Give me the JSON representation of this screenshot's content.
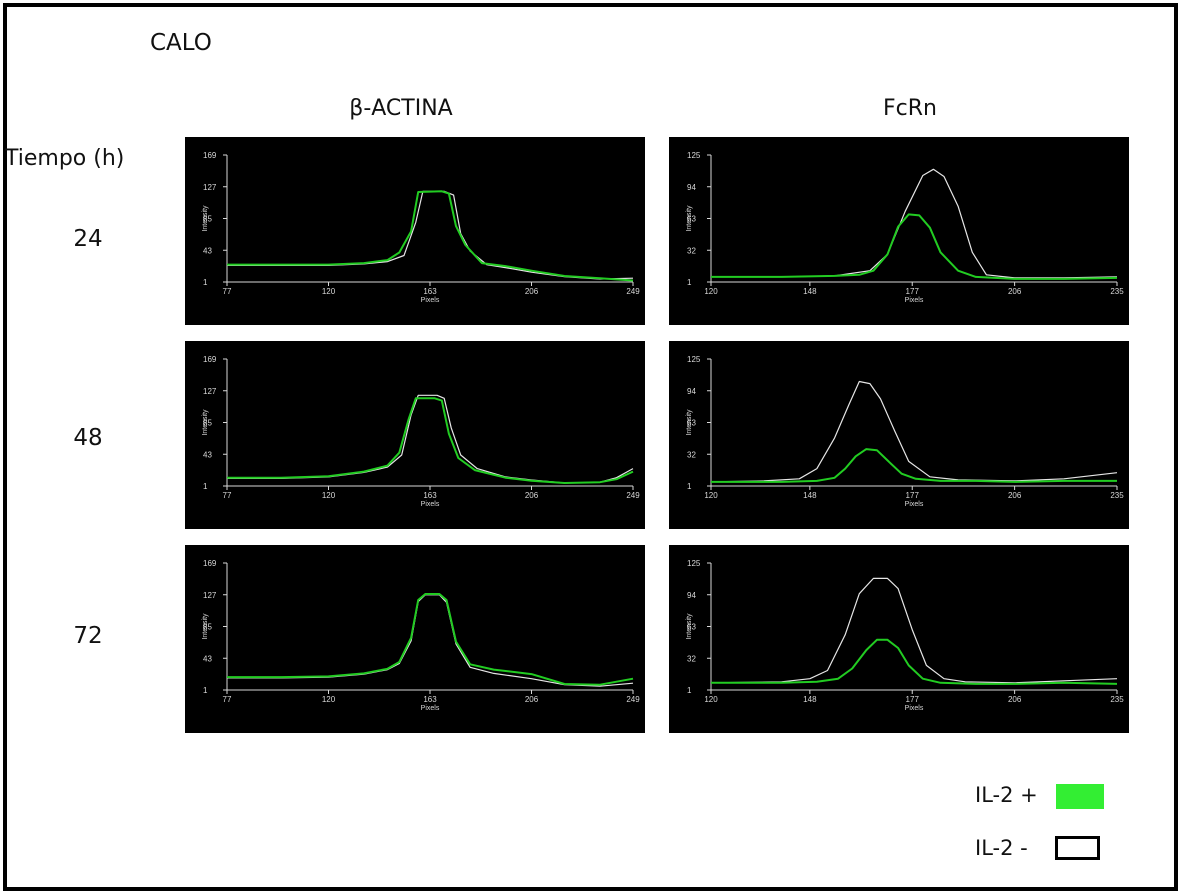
{
  "figure": {
    "cell_line": "CALO",
    "column_titles": [
      "β-ACTINA",
      "FcRn"
    ],
    "row_header": "Tiempo (h)",
    "row_labels": [
      "24",
      "48",
      "72"
    ]
  },
  "legend": {
    "items": [
      {
        "label": "IL-2 +",
        "color": "#33ee33"
      },
      {
        "label": "IL-2 -",
        "color": "#ffffff"
      }
    ]
  },
  "colors": {
    "panel_bg": "#000000",
    "axis": "#d8d8d8",
    "il2_plus": "#22cc22",
    "il2_minus": "#e6e6e6"
  },
  "chart_data": [
    {
      "type": "line",
      "row": "24",
      "column": "β-ACTINA",
      "xlabel": "Pixels",
      "ylabel": "Intensity",
      "xlim": [
        77,
        249
      ],
      "ylim": [
        1,
        169
      ],
      "xticks": [
        "77",
        "120",
        "163",
        "206",
        "249"
      ],
      "yticks": [
        "169",
        "127",
        "85",
        "43",
        "1"
      ],
      "series": [
        {
          "name": "IL-2 +",
          "x": [
            77,
            100,
            120,
            135,
            145,
            150,
            155,
            158,
            168,
            171,
            174,
            178,
            185,
            195,
            206,
            220,
            235,
            249
          ],
          "y": [
            24,
            24,
            24,
            26,
            30,
            40,
            68,
            120,
            121,
            118,
            75,
            50,
            26,
            22,
            16,
            9,
            6,
            3
          ]
        },
        {
          "name": "IL-2 -",
          "x": [
            77,
            100,
            120,
            135,
            145,
            152,
            157,
            160,
            169,
            173,
            176,
            180,
            187,
            195,
            206,
            220,
            235,
            249
          ],
          "y": [
            23,
            23,
            23,
            25,
            28,
            36,
            80,
            121,
            121,
            116,
            65,
            42,
            24,
            20,
            14,
            8,
            5,
            6
          ]
        }
      ]
    },
    {
      "type": "line",
      "row": "24",
      "column": "FcRn",
      "xlabel": "Pixels",
      "ylabel": "Intensity",
      "xlim": [
        120,
        235
      ],
      "ylim": [
        1,
        125
      ],
      "xticks": [
        "120",
        "148",
        "177",
        "206",
        "235"
      ],
      "yticks": [
        "125",
        "94",
        "63",
        "32",
        "1"
      ],
      "series": [
        {
          "name": "IL-2 +",
          "x": [
            120,
            140,
            155,
            162,
            166,
            170,
            173,
            176,
            179,
            182,
            185,
            190,
            195,
            206,
            220,
            235
          ],
          "y": [
            6,
            6,
            7,
            8,
            12,
            28,
            55,
            67,
            66,
            54,
            30,
            12,
            6,
            4,
            4,
            5
          ]
        },
        {
          "name": "IL-2 -",
          "x": [
            120,
            140,
            155,
            165,
            170,
            175,
            180,
            183,
            186,
            190,
            194,
            198,
            206,
            220,
            235
          ],
          "y": [
            6,
            6,
            7,
            12,
            28,
            70,
            105,
            111,
            104,
            75,
            30,
            8,
            5,
            5,
            6
          ]
        }
      ]
    },
    {
      "type": "line",
      "row": "48",
      "column": "β-ACTINA",
      "xlabel": "Pixels",
      "ylabel": "Intensity",
      "xlim": [
        77,
        249
      ],
      "ylim": [
        1,
        169
      ],
      "xticks": [
        "77",
        "120",
        "163",
        "206",
        "249"
      ],
      "yticks": [
        "169",
        "127",
        "85",
        "43",
        "1"
      ],
      "series": [
        {
          "name": "IL-2 +",
          "x": [
            77,
            100,
            120,
            135,
            145,
            150,
            154,
            157,
            165,
            168,
            171,
            175,
            182,
            195,
            206,
            220,
            235,
            242,
            249
          ],
          "y": [
            12,
            12,
            14,
            20,
            28,
            45,
            90,
            117,
            117,
            114,
            70,
            38,
            22,
            12,
            8,
            5,
            6,
            10,
            20
          ]
        },
        {
          "name": "IL-2 -",
          "x": [
            77,
            100,
            120,
            135,
            145,
            151,
            155,
            158,
            166,
            169,
            172,
            176,
            183,
            195,
            206,
            220,
            235,
            242,
            249
          ],
          "y": [
            11,
            11,
            13,
            19,
            26,
            42,
            95,
            121,
            121,
            117,
            78,
            42,
            24,
            13,
            9,
            5,
            6,
            12,
            24
          ]
        }
      ]
    },
    {
      "type": "line",
      "row": "48",
      "column": "FcRn",
      "xlabel": "Pixels",
      "ylabel": "Intensity",
      "xlim": [
        120,
        235
      ],
      "ylim": [
        1,
        125
      ],
      "xticks": [
        "120",
        "148",
        "177",
        "206",
        "235"
      ],
      "yticks": [
        "125",
        "94",
        "63",
        "32",
        "1"
      ],
      "series": [
        {
          "name": "IL-2 +",
          "x": [
            120,
            140,
            150,
            155,
            158,
            161,
            164,
            167,
            170,
            174,
            178,
            185,
            195,
            206,
            220,
            235
          ],
          "y": [
            5,
            5,
            6,
            9,
            18,
            30,
            37,
            36,
            26,
            13,
            8,
            6,
            6,
            5,
            6,
            6
          ]
        },
        {
          "name": "IL-2 -",
          "x": [
            120,
            135,
            145,
            150,
            155,
            159,
            162,
            165,
            168,
            172,
            176,
            182,
            190,
            206,
            220,
            235
          ],
          "y": [
            5,
            6,
            8,
            18,
            48,
            80,
            103,
            101,
            86,
            55,
            25,
            10,
            7,
            6,
            8,
            14
          ]
        }
      ]
    },
    {
      "type": "line",
      "row": "72",
      "column": "β-ACTINA",
      "xlabel": "Pixels",
      "ylabel": "Intensity",
      "xlim": [
        77,
        249
      ],
      "ylim": [
        1,
        169
      ],
      "xticks": [
        "77",
        "120",
        "163",
        "206",
        "249"
      ],
      "yticks": [
        "169",
        "127",
        "85",
        "43",
        "1"
      ],
      "series": [
        {
          "name": "IL-2 +",
          "x": [
            77,
            100,
            120,
            135,
            145,
            150,
            155,
            158,
            161,
            167,
            170,
            174,
            180,
            190,
            206,
            220,
            235,
            249
          ],
          "y": [
            18,
            18,
            19,
            23,
            29,
            38,
            70,
            120,
            128,
            128,
            120,
            65,
            35,
            28,
            22,
            9,
            8,
            16
          ]
        },
        {
          "name": "IL-2 -",
          "x": [
            77,
            100,
            120,
            135,
            145,
            150,
            155,
            158,
            161,
            167,
            170,
            174,
            180,
            190,
            206,
            220,
            235,
            249
          ],
          "y": [
            17,
            17,
            18,
            22,
            28,
            36,
            66,
            118,
            127,
            127,
            117,
            62,
            31,
            23,
            16,
            8,
            6,
            10
          ]
        }
      ]
    },
    {
      "type": "line",
      "row": "72",
      "column": "FcRn",
      "xlabel": "Pixels",
      "ylabel": "Intensity",
      "xlim": [
        120,
        235
      ],
      "ylim": [
        1,
        125
      ],
      "xticks": [
        "120",
        "148",
        "177",
        "206",
        "235"
      ],
      "yticks": [
        "125",
        "94",
        "63",
        "32",
        "1"
      ],
      "series": [
        {
          "name": "IL-2 +",
          "x": [
            120,
            140,
            150,
            156,
            160,
            164,
            167,
            170,
            173,
            176,
            180,
            185,
            195,
            206,
            220,
            235
          ],
          "y": [
            8,
            8,
            9,
            12,
            22,
            40,
            50,
            50,
            42,
            25,
            12,
            8,
            7,
            7,
            8,
            7
          ]
        },
        {
          "name": "IL-2 -",
          "x": [
            120,
            140,
            148,
            153,
            158,
            162,
            166,
            170,
            173,
            177,
            181,
            186,
            192,
            206,
            220,
            235
          ],
          "y": [
            8,
            9,
            12,
            20,
            55,
            95,
            110,
            110,
            100,
            60,
            25,
            12,
            9,
            8,
            10,
            12
          ]
        }
      ]
    }
  ]
}
